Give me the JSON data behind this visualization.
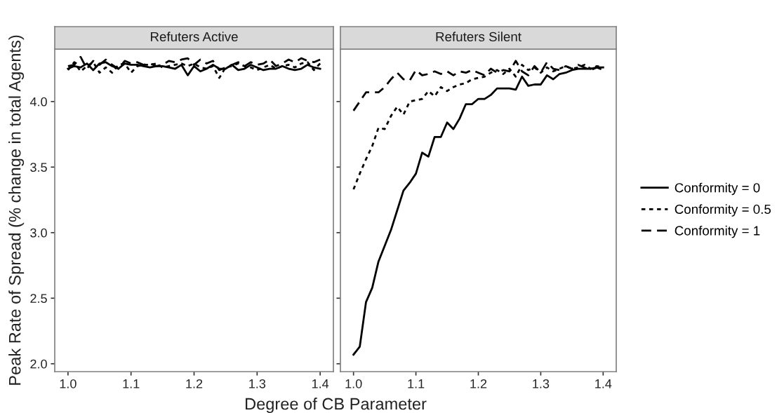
{
  "chart_data": [
    {
      "type": "line",
      "title": "Refuters Active",
      "xlabel": "Degree of CB Parameter",
      "ylabel": "Peak Rate of Spread (% change in total Agents)",
      "x": [
        1.0,
        1.01,
        1.02,
        1.03,
        1.04,
        1.05,
        1.06,
        1.07,
        1.08,
        1.09,
        1.1,
        1.11,
        1.12,
        1.13,
        1.14,
        1.15,
        1.16,
        1.17,
        1.18,
        1.19,
        1.2,
        1.21,
        1.22,
        1.23,
        1.24,
        1.25,
        1.26,
        1.27,
        1.28,
        1.29,
        1.3,
        1.31,
        1.32,
        1.33,
        1.34,
        1.35,
        1.36,
        1.37,
        1.38,
        1.39,
        1.4
      ],
      "xlim": [
        0.979,
        1.421
      ],
      "ylim": [
        1.94,
        4.4
      ],
      "xticks": [
        {
          "value": 1.0,
          "label": "1.0"
        },
        1.1,
        1.2,
        1.3,
        1.4
      ],
      "yticks": [
        {
          "value": 2.0,
          "label": "2.0"
        },
        2.5,
        {
          "value": 3.0,
          "label": "3.0"
        },
        3.5,
        {
          "value": 4.0,
          "label": "4.0"
        }
      ],
      "grid": false,
      "legend": "right",
      "series": [
        {
          "name": "Conformity = 0",
          "color": "#000000",
          "line_style": "solid",
          "values": [
            4.25,
            4.27,
            4.26,
            4.29,
            4.24,
            4.29,
            4.3,
            4.27,
            4.25,
            4.29,
            4.28,
            4.28,
            4.27,
            4.26,
            4.27,
            4.27,
            4.26,
            4.25,
            4.28,
            4.2,
            4.27,
            4.23,
            4.25,
            4.28,
            4.25,
            4.25,
            4.28,
            4.24,
            4.25,
            4.28,
            4.26,
            4.24,
            4.25,
            4.25,
            4.27,
            4.25,
            4.24,
            4.25,
            4.28,
            4.26,
            4.25
          ]
        },
        {
          "name": "Conformity = 0.5",
          "color": "#000000",
          "line_style": "dotted",
          "values": [
            4.24,
            4.3,
            4.23,
            4.27,
            4.3,
            4.22,
            4.26,
            4.22,
            4.28,
            4.29,
            4.22,
            4.27,
            4.28,
            4.28,
            4.29,
            4.26,
            4.27,
            4.28,
            4.29,
            4.27,
            4.29,
            4.26,
            4.25,
            4.27,
            4.18,
            4.26,
            4.27,
            4.29,
            4.27,
            4.26,
            4.24,
            4.26,
            4.28,
            4.25,
            4.27,
            4.28,
            4.26,
            4.29,
            4.3,
            4.24,
            4.29
          ]
        },
        {
          "name": "Conformity = 1",
          "color": "#000000",
          "line_style": "dashed",
          "values": [
            4.27,
            4.28,
            4.34,
            4.25,
            4.31,
            4.28,
            4.32,
            4.28,
            4.25,
            4.31,
            4.29,
            4.3,
            4.28,
            4.29,
            4.27,
            4.28,
            4.31,
            4.3,
            4.32,
            4.33,
            4.28,
            4.32,
            4.29,
            4.31,
            4.24,
            4.26,
            4.28,
            4.3,
            4.27,
            4.3,
            4.28,
            4.29,
            4.32,
            4.27,
            4.29,
            4.32,
            4.3,
            4.33,
            4.31,
            4.3,
            4.32
          ]
        }
      ]
    },
    {
      "type": "line",
      "title": "Refuters Silent",
      "x": [
        1.0,
        1.01,
        1.02,
        1.03,
        1.04,
        1.05,
        1.06,
        1.07,
        1.08,
        1.09,
        1.1,
        1.11,
        1.12,
        1.13,
        1.14,
        1.15,
        1.16,
        1.17,
        1.18,
        1.19,
        1.2,
        1.21,
        1.22,
        1.23,
        1.24,
        1.25,
        1.26,
        1.27,
        1.28,
        1.29,
        1.3,
        1.31,
        1.32,
        1.33,
        1.34,
        1.35,
        1.36,
        1.37,
        1.38,
        1.39,
        1.4
      ],
      "xlim": [
        0.979,
        1.421
      ],
      "ylim": [
        1.94,
        4.4
      ],
      "xticks": [
        {
          "value": 1.0,
          "label": "1.0"
        },
        1.1,
        1.2,
        1.3,
        1.4
      ],
      "yticks": [
        {
          "value": 2.0,
          "label": null
        },
        {
          "value": 2.5,
          "label": null
        },
        {
          "value": 3.0,
          "label": null
        },
        {
          "value": 3.5,
          "label": null
        },
        {
          "value": 4.0,
          "label": null
        }
      ],
      "tick_labels": "x",
      "grid": false,
      "series": [
        {
          "color": "#000000",
          "line_style": "solid",
          "values": [
            2.07,
            2.13,
            2.47,
            2.58,
            2.78,
            2.9,
            3.02,
            3.17,
            3.32,
            3.38,
            3.45,
            3.61,
            3.58,
            3.73,
            3.73,
            3.84,
            3.79,
            3.87,
            3.98,
            3.98,
            4.02,
            4.02,
            4.05,
            4.1,
            4.1,
            4.1,
            4.09,
            4.19,
            4.12,
            4.13,
            4.13,
            4.2,
            4.17,
            4.21,
            4.22,
            4.24,
            4.25,
            4.25,
            4.25,
            4.26,
            4.26
          ]
        },
        {
          "color": "#000000",
          "line_style": "dotted",
          "values": [
            3.33,
            3.45,
            3.56,
            3.66,
            3.8,
            3.79,
            3.89,
            3.96,
            3.9,
            4.0,
            4.01,
            4.02,
            4.08,
            4.04,
            4.11,
            4.08,
            4.11,
            4.13,
            4.14,
            4.17,
            4.18,
            4.19,
            4.22,
            4.24,
            4.21,
            4.25,
            4.19,
            4.28,
            4.24,
            4.26,
            4.22,
            4.26,
            4.23,
            4.25,
            4.27,
            4.25,
            4.26,
            4.28,
            4.25,
            4.27,
            4.26
          ]
        },
        {
          "color": "#000000",
          "line_style": "dashed",
          "values": [
            3.93,
            4.0,
            4.07,
            4.07,
            4.07,
            4.11,
            4.17,
            4.22,
            4.17,
            4.16,
            4.24,
            4.2,
            4.21,
            4.23,
            4.21,
            4.23,
            4.2,
            4.23,
            4.22,
            4.24,
            4.22,
            4.2,
            4.25,
            4.22,
            4.24,
            4.23,
            4.31,
            4.23,
            4.2,
            4.27,
            4.22,
            4.3,
            4.25,
            4.24,
            4.27,
            4.25,
            4.28,
            4.26,
            4.24,
            4.26,
            4.24
          ]
        }
      ]
    }
  ]
}
